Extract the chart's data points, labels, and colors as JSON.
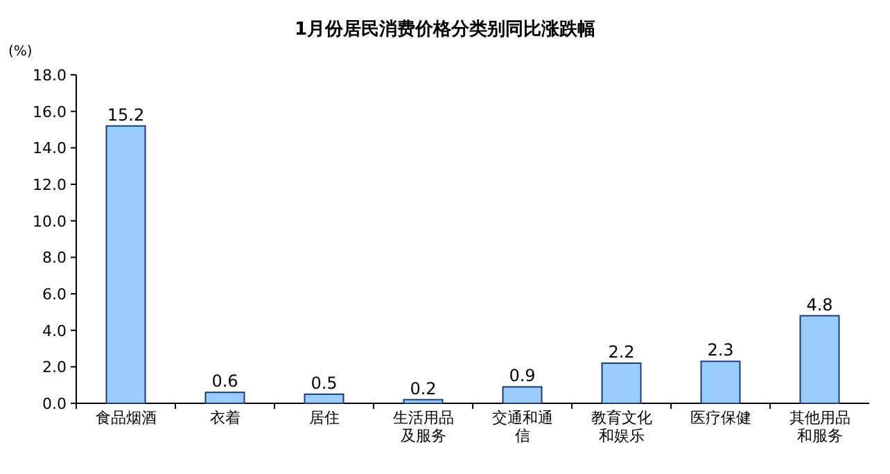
{
  "chart_data": {
    "type": "bar",
    "title": "1月份居民消费价格分类别同比涨跌幅",
    "ylabel": "(%)",
    "categories": [
      "食品烟酒",
      "衣着",
      "居住",
      "生活用品及服务",
      "交通和通信",
      "教育文化和娱乐",
      "医疗保健",
      "其他用品和服务"
    ],
    "values": [
      15.2,
      0.6,
      0.5,
      0.2,
      0.9,
      2.2,
      2.3,
      4.8
    ],
    "color": "#99ccff",
    "data_labels": true,
    "ylim": [
      0,
      18
    ],
    "yticks": [
      {
        "value": 0,
        "label": "0.0"
      },
      {
        "value": 2,
        "label": "2.0"
      },
      {
        "value": 4,
        "label": "4.0"
      },
      {
        "value": 6,
        "label": "6.0"
      },
      {
        "value": 8,
        "label": "8.0"
      },
      {
        "value": 10,
        "label": "10.0"
      },
      {
        "value": 12,
        "label": "12.0"
      },
      {
        "value": 14,
        "label": "14.0"
      },
      {
        "value": 16,
        "label": "16.0"
      },
      {
        "value": 18,
        "label": "18.0"
      }
    ]
  }
}
